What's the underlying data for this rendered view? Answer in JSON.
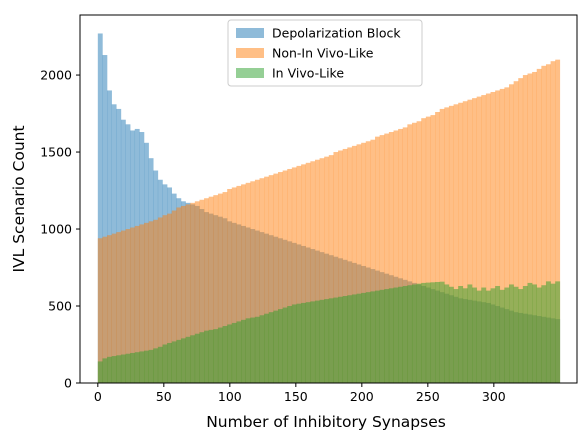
{
  "chart_data": {
    "type": "bar",
    "subtype": "overlapping-histogram",
    "title": "",
    "xlabel": "Number of Inhibitory Synapses",
    "ylabel": "IVL Scenario Count",
    "xlim": [
      -13.5,
      363
    ],
    "ylim": [
      0,
      2390
    ],
    "xticks": [
      0,
      50,
      100,
      150,
      200,
      250,
      300
    ],
    "yticks": [
      0,
      500,
      1000,
      1500,
      2000
    ],
    "bin_start": 0,
    "bin_width": 3.5,
    "bin_count": 100,
    "legend": {
      "position": "upper center"
    },
    "series": [
      {
        "name": "Depolarization Block",
        "color": "#1f77b4",
        "alpha": 0.5,
        "values": [
          2270,
          2130,
          1900,
          1810,
          1780,
          1710,
          1680,
          1640,
          1650,
          1630,
          1560,
          1460,
          1380,
          1320,
          1290,
          1270,
          1230,
          1200,
          1180,
          1170,
          1160,
          1150,
          1130,
          1110,
          1100,
          1090,
          1080,
          1070,
          1050,
          1040,
          1030,
          1020,
          1010,
          1000,
          990,
          980,
          970,
          960,
          950,
          940,
          930,
          920,
          910,
          900,
          890,
          880,
          870,
          860,
          850,
          840,
          830,
          820,
          810,
          800,
          790,
          780,
          770,
          760,
          750,
          740,
          730,
          720,
          710,
          700,
          690,
          680,
          670,
          660,
          650,
          640,
          630,
          620,
          610,
          600,
          590,
          580,
          570,
          560,
          550,
          545,
          540,
          535,
          530,
          525,
          520,
          510,
          500,
          490,
          480,
          470,
          460,
          455,
          450,
          445,
          440,
          435,
          430,
          425,
          420,
          415
        ]
      },
      {
        "name": "Non-In Vivo-Like",
        "color": "#ff7f0e",
        "alpha": 0.5,
        "values": [
          940,
          950,
          960,
          970,
          980,
          990,
          1000,
          1010,
          1020,
          1030,
          1040,
          1050,
          1060,
          1075,
          1090,
          1100,
          1120,
          1140,
          1150,
          1160,
          1170,
          1180,
          1190,
          1200,
          1210,
          1220,
          1230,
          1240,
          1260,
          1270,
          1280,
          1290,
          1300,
          1310,
          1320,
          1330,
          1340,
          1350,
          1360,
          1370,
          1380,
          1390,
          1400,
          1410,
          1420,
          1430,
          1440,
          1450,
          1460,
          1470,
          1480,
          1500,
          1510,
          1520,
          1530,
          1540,
          1550,
          1560,
          1570,
          1580,
          1600,
          1610,
          1620,
          1630,
          1640,
          1650,
          1660,
          1680,
          1690,
          1700,
          1720,
          1730,
          1740,
          1760,
          1780,
          1790,
          1800,
          1810,
          1820,
          1830,
          1840,
          1850,
          1860,
          1870,
          1880,
          1890,
          1900,
          1910,
          1920,
          1940,
          1960,
          1980,
          2000,
          2010,
          2020,
          2040,
          2060,
          2070,
          2090,
          2100
        ]
      },
      {
        "name": "In Vivo-Like",
        "color": "#2ca02c",
        "alpha": 0.5,
        "values": [
          140,
          160,
          170,
          175,
          180,
          185,
          190,
          195,
          200,
          205,
          210,
          215,
          225,
          235,
          250,
          260,
          270,
          280,
          290,
          300,
          310,
          320,
          330,
          340,
          345,
          350,
          360,
          370,
          380,
          390,
          400,
          410,
          420,
          425,
          430,
          440,
          450,
          460,
          470,
          480,
          490,
          500,
          510,
          515,
          520,
          525,
          530,
          535,
          540,
          545,
          550,
          555,
          560,
          565,
          570,
          575,
          580,
          585,
          590,
          595,
          600,
          605,
          610,
          615,
          620,
          625,
          630,
          635,
          640,
          645,
          650,
          652,
          654,
          656,
          658,
          640,
          625,
          610,
          630,
          615,
          640,
          620,
          600,
          620,
          600,
          615,
          630,
          605,
          620,
          640,
          625,
          610,
          630,
          650,
          640,
          620,
          635,
          660,
          645,
          660
        ]
      }
    ]
  }
}
